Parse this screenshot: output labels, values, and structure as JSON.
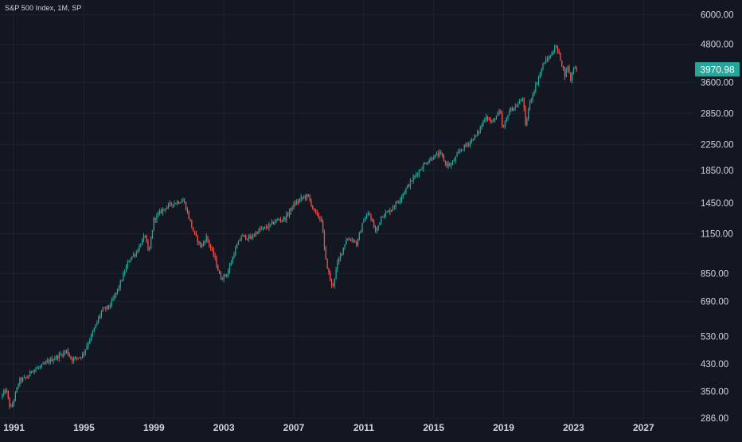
{
  "header": {
    "title": "S&P 500 Index, 1M, SP"
  },
  "colors": {
    "background": "#131722",
    "grid": "#1e2230",
    "text": "#d1d4dc",
    "up": "#26a69a",
    "down": "#ef5350",
    "last_price_bg": "#26a69a"
  },
  "last_price": {
    "label": "3970.98",
    "value": 3970.98
  },
  "chart_data": {
    "type": "candlestick",
    "title": "S&P 500 Index, 1M, SP",
    "y_scale": "log",
    "y_ticks": [
      286.0,
      350.0,
      430.0,
      530.0,
      690.0,
      850.0,
      1150.0,
      1450.0,
      1850.0,
      2250.0,
      2850.0,
      3600.0,
      4800.0,
      6000.0
    ],
    "y_tick_labels": [
      "286.00",
      "350.00",
      "430.00",
      "530.00",
      "690.00",
      "850.00",
      "1150.00",
      "1450.00",
      "1850.00",
      "2250.00",
      "2850.00",
      "3600.00",
      "4800.00",
      "6000.00"
    ],
    "x_ticks": [
      1991,
      1995,
      1999,
      2003,
      2007,
      2011,
      2015,
      2019,
      2023,
      2027
    ],
    "x_tick_labels": [
      "1991",
      "1995",
      "1999",
      "2003",
      "2007",
      "2011",
      "2015",
      "2019",
      "2023",
      "2027"
    ],
    "x_range": [
      1990.2,
      2029.9
    ],
    "y_range": [
      286,
      6700
    ],
    "grid": true,
    "anchors": [
      [
        1990.25,
        335
      ],
      [
        1990.55,
        355
      ],
      [
        1990.8,
        305
      ],
      [
        1991.0,
        330
      ],
      [
        1991.3,
        380
      ],
      [
        1991.8,
        390
      ],
      [
        1992.0,
        410
      ],
      [
        1992.5,
        420
      ],
      [
        1993.0,
        440
      ],
      [
        1993.5,
        455
      ],
      [
        1994.0,
        475
      ],
      [
        1994.3,
        445
      ],
      [
        1994.9,
        458
      ],
      [
        1995.5,
        545
      ],
      [
        1996.0,
        640
      ],
      [
        1996.5,
        670
      ],
      [
        1997.0,
        770
      ],
      [
        1997.6,
        950
      ],
      [
        1998.0,
        1000
      ],
      [
        1998.5,
        1140
      ],
      [
        1998.7,
        980
      ],
      [
        1999.0,
        1280
      ],
      [
        1999.5,
        1380
      ],
      [
        2000.0,
        1440
      ],
      [
        2000.7,
        1480
      ],
      [
        2001.0,
        1300
      ],
      [
        2001.3,
        1150
      ],
      [
        2001.7,
        1040
      ],
      [
        2002.0,
        1120
      ],
      [
        2002.5,
        950
      ],
      [
        2002.8,
        820
      ],
      [
        2003.2,
        850
      ],
      [
        2003.6,
        1000
      ],
      [
        2004.0,
        1130
      ],
      [
        2004.5,
        1110
      ],
      [
        2005.0,
        1180
      ],
      [
        2005.5,
        1210
      ],
      [
        2006.0,
        1270
      ],
      [
        2006.5,
        1290
      ],
      [
        2007.0,
        1430
      ],
      [
        2007.5,
        1510
      ],
      [
        2007.8,
        1530
      ],
      [
        2008.2,
        1350
      ],
      [
        2008.6,
        1270
      ],
      [
        2008.8,
        960
      ],
      [
        2009.0,
        850
      ],
      [
        2009.2,
        760
      ],
      [
        2009.5,
        920
      ],
      [
        2010.0,
        1100
      ],
      [
        2010.4,
        1100
      ],
      [
        2010.6,
        1060
      ],
      [
        2011.0,
        1280
      ],
      [
        2011.3,
        1340
      ],
      [
        2011.7,
        1160
      ],
      [
        2012.0,
        1310
      ],
      [
        2012.5,
        1370
      ],
      [
        2013.0,
        1480
      ],
      [
        2013.5,
        1640
      ],
      [
        2014.0,
        1800
      ],
      [
        2014.5,
        1950
      ],
      [
        2015.0,
        2060
      ],
      [
        2015.4,
        2100
      ],
      [
        2015.7,
        1940
      ],
      [
        2016.0,
        1930
      ],
      [
        2016.5,
        2150
      ],
      [
        2017.0,
        2280
      ],
      [
        2017.5,
        2440
      ],
      [
        2018.0,
        2800
      ],
      [
        2018.3,
        2650
      ],
      [
        2018.8,
        2900
      ],
      [
        2018.95,
        2500
      ],
      [
        2019.3,
        2900
      ],
      [
        2019.8,
        3030
      ],
      [
        2020.1,
        3230
      ],
      [
        2020.25,
        2580
      ],
      [
        2020.5,
        3100
      ],
      [
        2020.9,
        3600
      ],
      [
        2021.3,
        4180
      ],
      [
        2021.7,
        4400
      ],
      [
        2021.95,
        4760
      ],
      [
        2022.2,
        4400
      ],
      [
        2022.5,
        3800
      ],
      [
        2022.7,
        4130
      ],
      [
        2022.8,
        3600
      ],
      [
        2023.0,
        4050
      ],
      [
        2023.2,
        3970.98
      ]
    ]
  }
}
